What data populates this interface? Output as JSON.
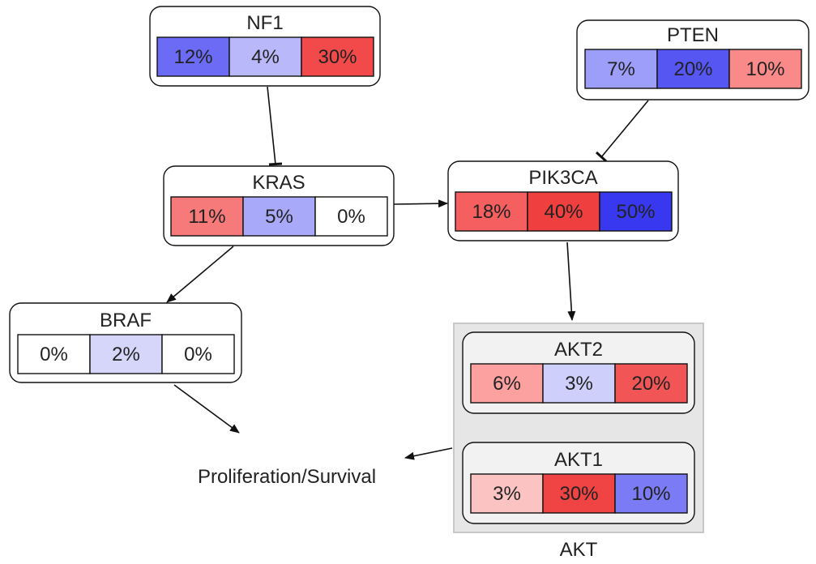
{
  "nodes": [
    {
      "id": "nf1",
      "label": "NF1",
      "cells": [
        {
          "text": "12%",
          "color": "#6b6bf5"
        },
        {
          "text": "4%",
          "color": "#b8b8fa"
        },
        {
          "text": "30%",
          "color": "#f24a4a"
        }
      ]
    },
    {
      "id": "pten",
      "label": "PTEN",
      "cells": [
        {
          "text": "7%",
          "color": "#9d9dfa"
        },
        {
          "text": "20%",
          "color": "#5656f2"
        },
        {
          "text": "10%",
          "color": "#fa8a8a"
        }
      ]
    },
    {
      "id": "kras",
      "label": "KRAS",
      "cells": [
        {
          "text": "11%",
          "color": "#f67a7a"
        },
        {
          "text": "5%",
          "color": "#a9a9fa"
        },
        {
          "text": "0%",
          "color": "#ffffff"
        }
      ]
    },
    {
      "id": "pik3ca",
      "label": "PIK3CA",
      "cells": [
        {
          "text": "18%",
          "color": "#f55f5f"
        },
        {
          "text": "40%",
          "color": "#f03f3f"
        },
        {
          "text": "50%",
          "color": "#3838f0"
        }
      ]
    },
    {
      "id": "braf",
      "label": "BRAF",
      "cells": [
        {
          "text": "0%",
          "color": "#ffffff"
        },
        {
          "text": "2%",
          "color": "#d6d6fb"
        },
        {
          "text": "0%",
          "color": "#ffffff"
        }
      ]
    },
    {
      "id": "akt2",
      "label": "AKT2",
      "cells": [
        {
          "text": "6%",
          "color": "#fca0a0"
        },
        {
          "text": "3%",
          "color": "#cfcffb"
        },
        {
          "text": "20%",
          "color": "#f25555"
        }
      ]
    },
    {
      "id": "akt1",
      "label": "AKT1",
      "cells": [
        {
          "text": "3%",
          "color": "#fcc3c3"
        },
        {
          "text": "30%",
          "color": "#f04444"
        },
        {
          "text": "10%",
          "color": "#7b7bf5"
        }
      ]
    }
  ],
  "group_label": "AKT",
  "outcome_label": "Proliferation/Survival",
  "colors": {
    "node_border": "#000000",
    "group_fill": "#e6e6e6",
    "group_border": "#c8c8c8",
    "node_fill": "#ffffff",
    "akt_node_fill": "#f2f2f2",
    "text": "#222222"
  }
}
